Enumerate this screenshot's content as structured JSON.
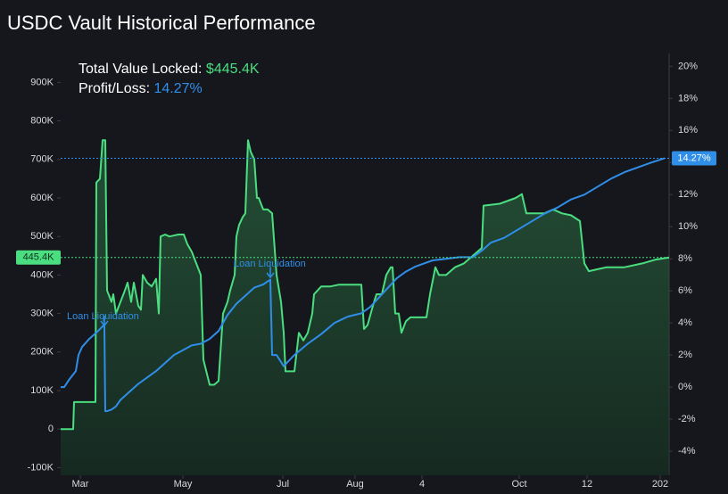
{
  "chart_data": {
    "type": "line",
    "title": "USDC Vault Historical Performance",
    "tvl_label": "Total Value Locked:",
    "tvl_value": "$445.4K",
    "pl_label": "Profit/Loss:",
    "pl_value": "14.27%",
    "annotations": [
      "Loan Liquidation",
      "Loan Liquidation"
    ],
    "tvl_marker": {
      "value": 445400,
      "label": "445.4K"
    },
    "pl_marker": {
      "value": 14.27,
      "label": "14.27%"
    },
    "xlim": [
      0,
      682
    ],
    "xticks": [
      {
        "value": 22,
        "label": "Mar"
      },
      {
        "value": 137,
        "label": "May"
      },
      {
        "value": 249,
        "label": "Jul"
      },
      {
        "value": 330,
        "label": "Aug"
      },
      {
        "value": 405,
        "label": "4"
      },
      {
        "value": 514,
        "label": "Oct"
      },
      {
        "value": 590,
        "label": "12"
      },
      {
        "value": 672,
        "label": "202"
      }
    ],
    "ylim": [
      -120000,
      975000
    ],
    "yticks": [
      {
        "value": -100000,
        "label": "-100K"
      },
      0,
      {
        "value": 100000,
        "label": "100K"
      },
      {
        "value": 200000,
        "label": "200K"
      },
      {
        "value": 300000,
        "label": "300K"
      },
      {
        "value": 400000,
        "label": "400K"
      },
      {
        "value": 500000,
        "label": "500K"
      },
      {
        "value": 600000,
        "label": "600K"
      },
      {
        "value": 700000,
        "label": "700K"
      },
      {
        "value": 800000,
        "label": "800K"
      },
      {
        "value": 900000,
        "label": "900K"
      }
    ],
    "y2lim": [
      -5.5,
      20.8
    ],
    "y2ticks": [
      {
        "value": -4,
        "label": "-4%"
      },
      {
        "value": -2,
        "label": "-2%"
      },
      {
        "value": 0,
        "label": "0%"
      },
      {
        "value": 2,
        "label": "2%"
      },
      {
        "value": 4,
        "label": "4%"
      },
      {
        "value": 6,
        "label": "6%"
      },
      {
        "value": 8,
        "label": "8%"
      },
      {
        "value": 10,
        "label": "10%"
      },
      {
        "value": 12,
        "label": "12%"
      },
      {
        "value": 14,
        "label": "14%"
      },
      {
        "value": 16,
        "label": "16%"
      },
      {
        "value": 18,
        "label": "18%"
      },
      {
        "value": 20,
        "label": "20%"
      }
    ],
    "series": [
      {
        "name": "Total Value Locked",
        "color": "#4ade80",
        "axis": "y",
        "x": [
          0,
          14,
          15,
          39,
          40,
          44,
          47,
          50,
          52,
          57,
          59,
          62,
          67,
          72,
          75,
          79,
          82,
          87,
          90,
          92,
          97,
          102,
          107,
          110,
          112,
          117,
          122,
          132,
          138,
          142,
          147,
          152,
          157,
          160,
          167,
          172,
          177,
          182,
          187,
          190,
          195,
          197,
          200,
          204,
          207,
          210,
          213,
          217,
          220,
          222,
          227,
          232,
          237,
          242,
          247,
          250,
          252,
          257,
          262,
          267,
          272,
          277,
          282,
          284,
          292,
          302,
          312,
          327,
          337,
          340,
          344,
          350,
          354,
          360,
          365,
          370,
          372,
          375,
          379,
          382,
          387,
          392,
          410,
          414,
          420,
          424,
          432,
          442,
          452,
          462,
          472,
          474,
          492,
          510,
          517,
          522,
          532,
          542,
          552,
          562,
          572,
          582,
          587,
          592,
          602,
          612,
          632,
          652,
          667,
          682
        ],
        "values": [
          0,
          0,
          70000,
          70000,
          640000,
          650000,
          750000,
          750000,
          360000,
          330000,
          350000,
          300000,
          330000,
          360000,
          380000,
          330000,
          380000,
          320000,
          310000,
          400000,
          380000,
          370000,
          390000,
          300000,
          500000,
          505000,
          500000,
          505000,
          505000,
          480000,
          460000,
          430000,
          400000,
          180000,
          115000,
          115000,
          125000,
          300000,
          330000,
          360000,
          400000,
          500000,
          530000,
          550000,
          560000,
          750000,
          720000,
          700000,
          600000,
          600000,
          570000,
          570000,
          560000,
          400000,
          330000,
          250000,
          150000,
          150000,
          150000,
          250000,
          230000,
          250000,
          300000,
          350000,
          370000,
          370000,
          375000,
          375000,
          375000,
          260000,
          270000,
          320000,
          350000,
          350000,
          400000,
          420000,
          420000,
          300000,
          300000,
          250000,
          280000,
          290000,
          290000,
          350000,
          420000,
          400000,
          400000,
          420000,
          430000,
          450000,
          470000,
          580000,
          585000,
          600000,
          610000,
          560000,
          560000,
          560000,
          570000,
          560000,
          555000,
          540000,
          430000,
          410000,
          415000,
          420000,
          420000,
          430000,
          440000,
          445400
        ]
      },
      {
        "name": "Profit/Loss",
        "color": "#2f8fe8",
        "axis": "y2",
        "x": [
          0,
          4,
          10,
          17,
          20,
          24,
          32,
          42,
          49,
          50,
          52,
          57,
          62,
          67,
          77,
          87,
          97,
          107,
          117,
          127,
          137,
          147,
          157,
          167,
          177,
          187,
          197,
          207,
          217,
          227,
          235,
          237,
          242,
          250,
          262,
          277,
          292,
          307,
          322,
          337,
          347,
          357,
          367,
          377,
          387,
          397,
          407,
          417,
          432,
          447,
          462,
          472,
          482,
          497,
          512,
          527,
          542,
          557,
          572,
          587,
          602,
          617,
          632,
          647,
          662,
          677
        ],
        "values": [
          0,
          0,
          0.5,
          1,
          2,
          2.5,
          3,
          3.5,
          3.9,
          -1.5,
          -1.5,
          -1.4,
          -1.2,
          -0.8,
          -0.3,
          0.2,
          0.6,
          1,
          1.5,
          2,
          2.3,
          2.6,
          2.7,
          3,
          3.5,
          4.5,
          5.2,
          5.7,
          6.2,
          6.4,
          6.7,
          2,
          2,
          1.3,
          2,
          2.7,
          3.3,
          4,
          4.4,
          4.6,
          5,
          5.6,
          6.2,
          6.8,
          7.2,
          7.5,
          7.7,
          7.9,
          8,
          8.1,
          8.1,
          8.5,
          9,
          9.3,
          9.8,
          10.3,
          10.8,
          11.2,
          11.7,
          12,
          12.5,
          13,
          13.4,
          13.7,
          14,
          14.27
        ]
      }
    ]
  }
}
